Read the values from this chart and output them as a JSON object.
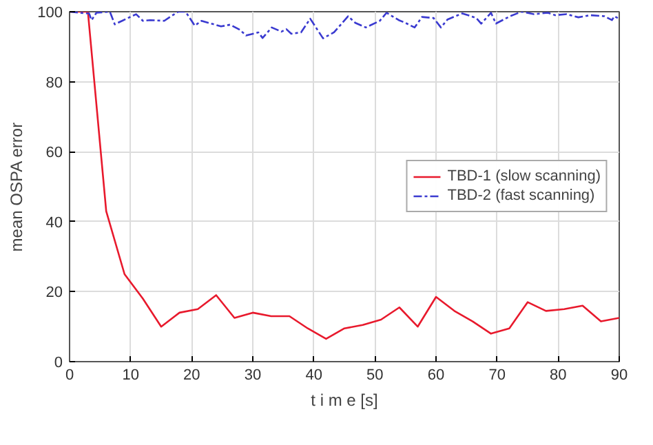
{
  "chart_data": {
    "type": "line",
    "xlabel": "t i m e [s]",
    "ylabel": "mean OSPA error",
    "xlim": [
      0,
      90
    ],
    "ylim": [
      0,
      100
    ],
    "xticks": [
      0,
      10,
      20,
      30,
      40,
      50,
      60,
      70,
      80,
      90
    ],
    "yticks": [
      0,
      20,
      40,
      60,
      80,
      100
    ],
    "grid": true,
    "legend": "right",
    "series": [
      {
        "name": "TBD-1 (slow scanning)",
        "color": "#e8192c",
        "line_style": "solid",
        "x": [
          0,
          3,
          6,
          9,
          12,
          15,
          18,
          21,
          24,
          27,
          30,
          33,
          36,
          39,
          42,
          45,
          48,
          51,
          54,
          57,
          60,
          63,
          66,
          69,
          72,
          75,
          78,
          81,
          84,
          87,
          90
        ],
        "values": [
          100,
          100,
          43,
          25,
          18,
          10,
          14,
          15,
          19,
          12.5,
          14,
          13,
          13,
          9.5,
          6.5,
          9.5,
          10.5,
          12,
          15.5,
          10,
          18.5,
          14.5,
          11.5,
          8,
          9.5,
          17,
          14.5,
          15,
          16,
          11.5,
          12.5
        ]
      },
      {
        "name": "TBD-2 (fast scanning)",
        "color": "#3a3ad0",
        "line_style": "dashed",
        "x": [
          0,
          1.6,
          3.2,
          3.6,
          4.4,
          6.6,
          7.4,
          8.6,
          10.9,
          12,
          13.2,
          15.5,
          16.6,
          17.8,
          19,
          20.5,
          21.6,
          22.8,
          24.8,
          26.3,
          27.9,
          28.9,
          30.9,
          31.6,
          33.1,
          34.7,
          35.5,
          36.3,
          37.9,
          39.4,
          40.6,
          41.5,
          43.3,
          45.6,
          46.8,
          48.5,
          50.8,
          51.9,
          53.9,
          55,
          56.5,
          57.7,
          59.6,
          60.8,
          61.9,
          64.3,
          65.4,
          66.6,
          67.4,
          69,
          69.8,
          72.1,
          74,
          76,
          78.3,
          79.5,
          81.4,
          83.3,
          85.3,
          87.6,
          88.8,
          89.2,
          90
        ],
        "values": [
          100,
          99.7,
          99.5,
          97.6,
          99.7,
          100,
          96.4,
          97.4,
          99.3,
          97.4,
          97.6,
          97.4,
          98.7,
          100,
          100,
          96,
          97.4,
          96.8,
          95.8,
          96.3,
          94.8,
          93.2,
          94.1,
          92.5,
          95.5,
          94.3,
          95,
          93.7,
          94.1,
          98,
          94.8,
          92.4,
          94.1,
          98.7,
          96.8,
          95.5,
          97.4,
          99.7,
          97.6,
          96.8,
          95.5,
          98.5,
          98.2,
          95.5,
          97.8,
          99.5,
          98.9,
          98.2,
          96.6,
          99.7,
          96.6,
          98.7,
          100,
          99.3,
          99.7,
          99,
          99.3,
          98.4,
          99,
          98.7,
          97.6,
          98.7,
          98
        ]
      }
    ]
  }
}
